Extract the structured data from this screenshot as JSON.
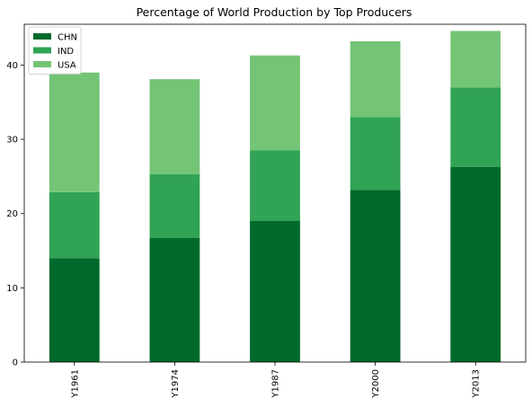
{
  "chart_data": {
    "type": "bar",
    "stacked": true,
    "title": "Percentage of World Production by Top Producers",
    "xlabel": "",
    "ylabel": "",
    "categories": [
      "Y1961",
      "Y1974",
      "Y1987",
      "Y2000",
      "Y2013"
    ],
    "series": [
      {
        "name": "CHN",
        "color": "#006a2b",
        "values": [
          14.0,
          16.7,
          19.0,
          23.2,
          26.3
        ]
      },
      {
        "name": "IND",
        "color": "#31a354",
        "values": [
          8.9,
          8.6,
          9.5,
          9.8,
          10.7
        ]
      },
      {
        "name": "USA",
        "color": "#74c476",
        "values": [
          16.1,
          12.8,
          12.8,
          10.2,
          7.6
        ]
      }
    ],
    "ylim": [
      0,
      45.5
    ],
    "yticks": [
      0,
      10,
      20,
      30,
      40
    ],
    "grid": false,
    "legend_position": "top-left"
  }
}
